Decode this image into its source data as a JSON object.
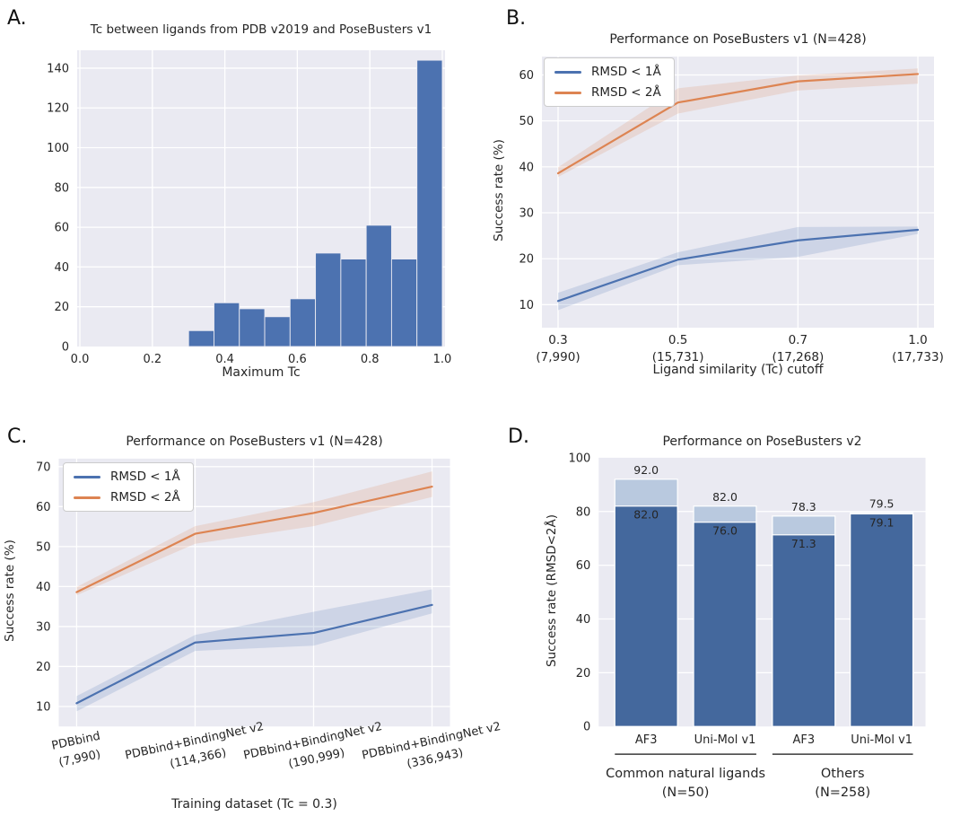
{
  "panels": {
    "a": {
      "letter": "A."
    },
    "b": {
      "letter": "B."
    },
    "c": {
      "letter": "C."
    },
    "d": {
      "letter": "D."
    }
  },
  "colors": {
    "plot_background": "#eaeaf2",
    "grid": "#ffffff",
    "blue": "#4c72b0",
    "orange": "#dd8452",
    "bar_dark_blue": "#44689d",
    "bar_light_blue": "#b9c9df",
    "text": "#262626"
  },
  "chart_data": [
    {
      "panel": "A",
      "type": "bar",
      "title": "Tc between ligands from PDB v2019 and PoseBusters v1",
      "xlabel": "Maximum Tc",
      "ylabel": "",
      "bin_start": 0.3,
      "bin_width": 0.07,
      "values": [
        8,
        22,
        19,
        15,
        24,
        47,
        44,
        61,
        44,
        144
      ],
      "bar_color": "#4c72b0",
      "xlim": [
        -0.0075,
        1.0075
      ],
      "xticks": [
        0.0,
        0.2,
        0.4,
        0.6,
        0.8,
        1.0
      ],
      "xtick_labels": [
        "0.0",
        "0.2",
        "0.4",
        "0.6",
        "0.8",
        "1.0"
      ],
      "ylim": [
        0,
        149
      ],
      "yticks": [
        0,
        20,
        40,
        60,
        80,
        100,
        120,
        140
      ],
      "grid": true
    },
    {
      "panel": "B",
      "type": "line",
      "title": "Performance on PoseBusters v1 (N=428)",
      "xlabel": "Ligand similarity (Tc) cutoff",
      "ylabel": "Success rate (%)",
      "x_tick_lines": [
        [
          "0.3",
          "(7,990)"
        ],
        [
          "0.5",
          "(15,731)"
        ],
        [
          "0.7",
          "(17,268)"
        ],
        [
          "1.0",
          "(17,733)"
        ]
      ],
      "series": [
        {
          "name": "RMSD < 1Å",
          "color": "#4c72b0",
          "values": [
            10.8,
            19.8,
            24.0,
            26.3
          ],
          "band_low": [
            8.8,
            18.6,
            20.4,
            25.4
          ],
          "band_high": [
            12.6,
            21.4,
            26.9,
            27.0
          ]
        },
        {
          "name": "RMSD < 2Å",
          "color": "#dd8452",
          "values": [
            38.6,
            54.0,
            58.6,
            60.2
          ],
          "band_low": [
            37.8,
            51.6,
            56.6,
            58.1
          ],
          "band_high": [
            39.9,
            57.1,
            59.9,
            61.4
          ]
        }
      ],
      "ylim": [
        5,
        64
      ],
      "yticks": [
        10,
        20,
        30,
        40,
        50,
        60
      ],
      "tick_rotation": 0,
      "legend_position": "upper left",
      "grid": true
    },
    {
      "panel": "C",
      "type": "line",
      "title": "Performance on PoseBusters v1 (N=428)",
      "xlabel": "Training dataset (Tc = 0.3)",
      "ylabel": "Success rate (%)",
      "x_tick_lines": [
        [
          "PDBbind",
          "(7,990)"
        ],
        [
          "PDBbind+BindingNet v2",
          "(114,366)"
        ],
        [
          "PDBbind+BindingNet v2",
          "(190,999)"
        ],
        [
          "PDBbind+BindingNet v2",
          "(336,943)"
        ]
      ],
      "series": [
        {
          "name": "RMSD < 1Å",
          "color": "#4c72b0",
          "values": [
            10.8,
            26.0,
            28.4,
            35.4
          ],
          "band_low": [
            8.8,
            23.9,
            25.2,
            33.3
          ],
          "band_high": [
            12.6,
            27.9,
            33.7,
            39.3
          ]
        },
        {
          "name": "RMSD < 2Å",
          "color": "#dd8452",
          "values": [
            38.6,
            53.2,
            58.4,
            65.0
          ],
          "band_low": [
            37.8,
            50.7,
            55.1,
            62.4
          ],
          "band_high": [
            39.9,
            55.1,
            61.1,
            68.8
          ]
        }
      ],
      "ylim": [
        5,
        72
      ],
      "yticks": [
        10,
        20,
        30,
        40,
        50,
        60,
        70
      ],
      "tick_rotation": -12,
      "legend_position": "upper left",
      "grid": true
    },
    {
      "panel": "D",
      "type": "grouped-bar",
      "title": "Performance on PoseBusters v2",
      "xlabel": "",
      "ylabel": "Success rate (RMSD<2Å)",
      "bar_colors": {
        "dark": "#44689d",
        "light": "#b9c9df"
      },
      "groups": [
        {
          "label": "Common natural ligands",
          "sublabel": "(N=50)",
          "bars": [
            {
              "name": "AF3",
              "light": 92.0,
              "dark": 82.0
            },
            {
              "name": "Uni-Mol v1",
              "light": 82.0,
              "dark": 76.0
            }
          ]
        },
        {
          "label": "Others",
          "sublabel": "(N=258)",
          "bars": [
            {
              "name": "AF3",
              "light": 78.3,
              "dark": 71.3
            },
            {
              "name": "Uni-Mol v1",
              "light": 79.5,
              "dark": 79.1
            }
          ]
        }
      ],
      "ylim": [
        0,
        100
      ],
      "yticks": [
        0,
        20,
        40,
        60,
        80,
        100
      ],
      "grid": true
    }
  ]
}
